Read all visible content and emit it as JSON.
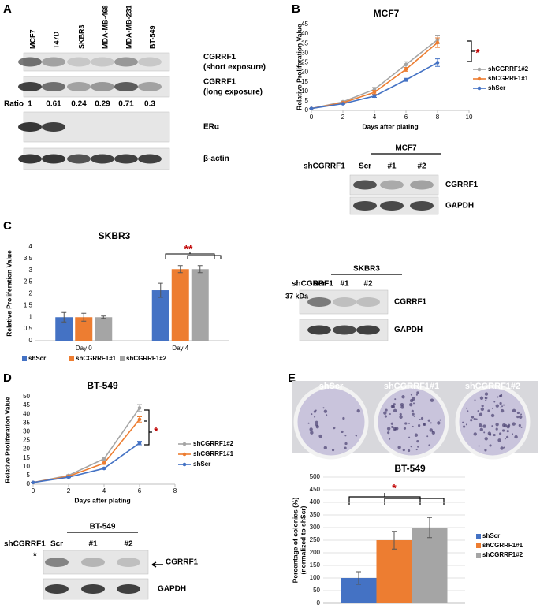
{
  "panel_labels": [
    "A",
    "B",
    "C",
    "D",
    "E"
  ],
  "blot_a": {
    "lanes": [
      "MCF7",
      "T47D",
      "SKBR3",
      "MDA-MB-468",
      "MDA-MB-231",
      "BT-549"
    ],
    "rows": [
      {
        "label": "CGRRF1",
        "note": "(short exposure)"
      },
      {
        "label": "CGRRF1",
        "note": "(long exposure)"
      },
      {
        "label": "ERα"
      },
      {
        "label": "β-actin"
      }
    ],
    "ratio_label": "Ratio",
    "ratios": [
      1,
      0.61,
      0.24,
      0.29,
      0.71,
      0.3
    ]
  },
  "blot_b": {
    "title": "MCF7",
    "row_label": "shCGRRF1",
    "lanes": [
      "Scr",
      "#1",
      "#2"
    ],
    "bands": [
      "CGRRF1",
      "GAPDH"
    ]
  },
  "blot_c": {
    "title": "SKBR3",
    "row_label": "shCGRRF1",
    "lanes": [
      "Scr",
      "#1",
      "#2"
    ],
    "marker": "37 kDa",
    "bands": [
      "CGRRF1",
      "GAPDH"
    ]
  },
  "blot_d": {
    "title": "BT-549",
    "row_label": "shCGRRF1",
    "lanes": [
      "Scr",
      "#1",
      "#2"
    ],
    "note": "*",
    "bands": [
      "CGRRF1",
      "GAPDH"
    ]
  },
  "plates": {
    "labels": [
      "shScr",
      "shCGRRF1#1",
      "shCGRRF1#2"
    ]
  },
  "chart_data": [
    {
      "type": "line",
      "title": "MCF7",
      "xlabel": "Days after plating",
      "ylabel": [
        "Relative Proliferation Value"
      ],
      "x": [
        0,
        2,
        4,
        6,
        8
      ],
      "xlim": [
        0,
        10
      ],
      "xticks": [
        0,
        2,
        4,
        6,
        8,
        10
      ],
      "ylim": [
        0,
        45
      ],
      "yticks": [
        0,
        5,
        10,
        15,
        20,
        25,
        30,
        35,
        40,
        45
      ],
      "grid": false,
      "series": [
        {
          "name": "shCGRRF1#2",
          "color": "#a5a5a5",
          "values": [
            1,
            4.5,
            11,
            24,
            37
          ],
          "errors": [
            0,
            0.5,
            1,
            1.5,
            2
          ]
        },
        {
          "name": "shCGRRF1#1",
          "color": "#ed7d31",
          "values": [
            1,
            4,
            9.5,
            21.5,
            35.5
          ],
          "errors": [
            0,
            0.5,
            1,
            1,
            2.5
          ]
        },
        {
          "name": "shScr",
          "color": "#4472c4",
          "values": [
            1,
            3.5,
            7.5,
            16,
            25
          ],
          "errors": [
            0,
            0.3,
            0.7,
            0.8,
            2
          ]
        }
      ],
      "annotation": "*",
      "legend": "right"
    },
    {
      "type": "bar",
      "title": "SKBR3",
      "ylabel": [
        "Relative Proliferation Value"
      ],
      "categories": [
        "Day 0",
        "Day 4"
      ],
      "ylim": [
        0,
        4
      ],
      "yticks": [
        0,
        0.5,
        1,
        1.5,
        2,
        2.5,
        3,
        3.5,
        4
      ],
      "grid": false,
      "series": [
        {
          "name": "shScr",
          "color": "#4472c4",
          "values": [
            1,
            2.15
          ],
          "errors": [
            0.2,
            0.3
          ]
        },
        {
          "name": "shCGRRF1#1",
          "color": "#ed7d31",
          "values": [
            1,
            3.05
          ],
          "errors": [
            0.17,
            0.15
          ]
        },
        {
          "name": "shCGRRF1#2",
          "color": "#a5a5a5",
          "values": [
            1,
            3.05
          ],
          "errors": [
            0.05,
            0.15
          ]
        }
      ],
      "annotation": "**",
      "legend": "bottom"
    },
    {
      "type": "line",
      "title": "BT-549",
      "xlabel": "Days after plating",
      "ylabel": [
        "Relative Proliferation Value"
      ],
      "x": [
        0,
        2,
        4,
        6
      ],
      "xlim": [
        0,
        8
      ],
      "xticks": [
        0,
        2,
        4,
        6,
        8
      ],
      "ylim": [
        0,
        50
      ],
      "yticks": [
        0,
        5,
        10,
        15,
        20,
        25,
        30,
        35,
        40,
        45,
        50
      ],
      "grid": false,
      "series": [
        {
          "name": "shCGRRF1#2",
          "color": "#a5a5a5",
          "values": [
            1,
            5,
            14.5,
            43.5
          ],
          "errors": [
            0,
            0.4,
            0.8,
            2
          ]
        },
        {
          "name": "shCGRRF1#1",
          "color": "#ed7d31",
          "values": [
            1,
            4.5,
            12,
            37
          ],
          "errors": [
            0,
            0.4,
            0.7,
            1.5
          ]
        },
        {
          "name": "shScr",
          "color": "#4472c4",
          "values": [
            1,
            4,
            9,
            23.5
          ],
          "errors": [
            0,
            0.3,
            0.5,
            1
          ]
        }
      ],
      "annotation": "*",
      "legend": "right"
    },
    {
      "type": "bar",
      "title": "BT-549",
      "ylabel": [
        "Percentage of colonies (%)",
        "(normalized to shScr)"
      ],
      "categories": [
        null
      ],
      "ylim": [
        0,
        500
      ],
      "yticks": [
        0,
        50,
        100,
        150,
        200,
        250,
        300,
        350,
        400,
        450,
        500
      ],
      "grid": true,
      "series": [
        {
          "name": "shScr",
          "color": "#4472c4",
          "values": [
            100
          ],
          "errors": [
            25
          ]
        },
        {
          "name": "shCGRRF1#1",
          "color": "#ed7d31",
          "values": [
            250
          ],
          "errors": [
            35
          ]
        },
        {
          "name": "shCGRRF1#2",
          "color": "#a5a5a5",
          "values": [
            300
          ],
          "errors": [
            40
          ]
        }
      ],
      "annotation": "*",
      "legend": "right"
    }
  ]
}
